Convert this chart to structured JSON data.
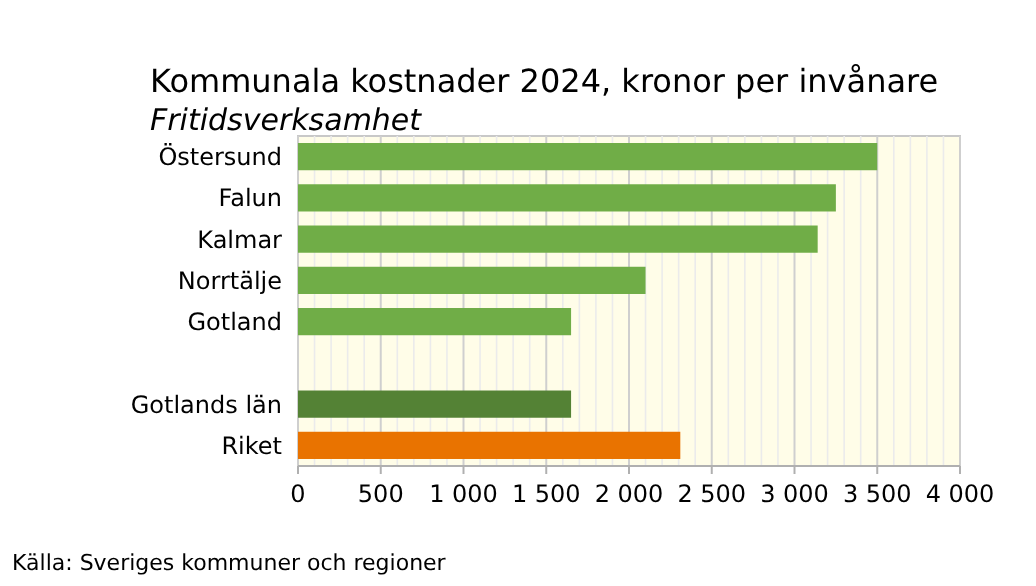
{
  "chart_data": {
    "type": "bar",
    "orientation": "horizontal",
    "title": "Kommunala kostnader 2024, kronor per invånare",
    "subtitle": "Fritidsverksamhet",
    "categories": [
      "Östersund",
      "Falun",
      "Kalmar",
      "Norrtälje",
      "Gotland",
      null,
      "Gotlands län",
      "Riket"
    ],
    "values": [
      3500,
      3250,
      3140,
      2100,
      1650,
      null,
      1650,
      2310
    ],
    "colors": [
      "#70ad47",
      "#70ad47",
      "#70ad47",
      "#70ad47",
      "#70ad47",
      null,
      "#548235",
      "#e97300"
    ],
    "xlim": [
      0,
      4000
    ],
    "xticks": [
      0,
      {
        "value": 100,
        "label": null
      },
      {
        "value": 200,
        "label": null
      },
      {
        "value": 300,
        "label": null
      },
      {
        "value": 400,
        "label": null
      },
      500,
      {
        "value": 600,
        "label": null
      },
      {
        "value": 700,
        "label": null
      },
      {
        "value": 800,
        "label": null
      },
      {
        "value": 900,
        "label": null
      },
      {
        "value": 1000,
        "label": "1 000"
      },
      {
        "value": 1100,
        "label": null
      },
      {
        "value": 1200,
        "label": null
      },
      {
        "value": 1300,
        "label": null
      },
      {
        "value": 1400,
        "label": null
      },
      {
        "value": 1500,
        "label": "1 500"
      },
      {
        "value": 1600,
        "label": null
      },
      {
        "value": 1700,
        "label": null
      },
      {
        "value": 1800,
        "label": null
      },
      {
        "value": 1900,
        "label": null
      },
      {
        "value": 2000,
        "label": "2 000"
      },
      {
        "value": 2100,
        "label": null
      },
      {
        "value": 2200,
        "label": null
      },
      {
        "value": 2300,
        "label": null
      },
      {
        "value": 2400,
        "label": null
      },
      {
        "value": 2500,
        "label": "2 500"
      },
      {
        "value": 2600,
        "label": null
      },
      {
        "value": 2700,
        "label": null
      },
      {
        "value": 2800,
        "label": null
      },
      {
        "value": 2900,
        "label": null
      },
      {
        "value": 3000,
        "label": "3 000"
      },
      {
        "value": 3100,
        "label": null
      },
      {
        "value": 3200,
        "label": null
      },
      {
        "value": 3300,
        "label": null
      },
      {
        "value": 3400,
        "label": null
      },
      {
        "value": 3500,
        "label": "3 500"
      },
      {
        "value": 3600,
        "label": null
      },
      {
        "value": 3700,
        "label": null
      },
      {
        "value": 3800,
        "label": null
      },
      {
        "value": 3900,
        "label": null
      },
      {
        "value": 4000,
        "label": "4 000"
      }
    ],
    "grid": "x",
    "annotations": [
      "Källa: Sveriges kommuner och regioner"
    ]
  }
}
